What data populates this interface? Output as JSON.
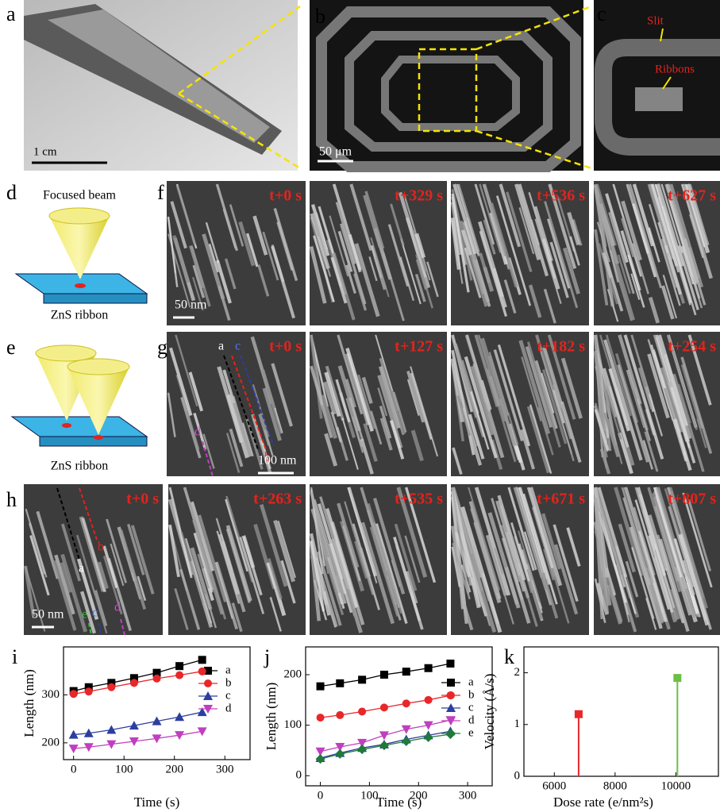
{
  "figure": {
    "panel_labels": [
      "a",
      "b",
      "c",
      "d",
      "e",
      "f",
      "g",
      "h",
      "i",
      "j",
      "k"
    ],
    "a": {
      "scale_bar": "1 cm"
    },
    "b": {
      "scale_bar": "50 μm"
    },
    "c": {
      "annotations": [
        "Slit",
        "Ribbons"
      ]
    },
    "d": {
      "beam": "Focused beam",
      "sample": "ZnS ribbon"
    },
    "e": {
      "sample": "ZnS ribbon"
    },
    "f": {
      "times": [
        "t+0 s",
        "t+329 s",
        "t+536 s",
        "t+627 s"
      ],
      "scale_bar": "50 nm"
    },
    "g": {
      "times": [
        "t+0 s",
        "t+127 s",
        "t+182 s",
        "t+254 s"
      ],
      "markers": [
        "a",
        "c",
        "d",
        "b"
      ],
      "scale_bar": "100 nm"
    },
    "h": {
      "times": [
        "t+0 s",
        "t+263 s",
        "t+535 s",
        "t+671 s",
        "t+807 s"
      ],
      "markers": [
        "b",
        "a",
        "e",
        "c",
        "d"
      ],
      "scale_bar": "50 nm"
    }
  },
  "chart_data": [
    {
      "type": "line",
      "x_label": "Time (s)",
      "y_label": "Length (nm)",
      "x": [
        0,
        30,
        75,
        120,
        165,
        210,
        255
      ],
      "xlim": [
        -20,
        350
      ],
      "xticks": [
        0,
        100,
        200,
        300
      ],
      "ylim": [
        165,
        400
      ],
      "yticks": [
        200,
        300
      ],
      "series": [
        {
          "name": "a",
          "color": "#000000",
          "marker": "square",
          "values": [
            308,
            316,
            325,
            335,
            346,
            360,
            373
          ]
        },
        {
          "name": "b",
          "color": "#e8272a",
          "marker": "circle",
          "values": [
            302,
            307,
            316,
            325,
            334,
            341,
            349
          ]
        },
        {
          "name": "c",
          "color": "#2c3e9e",
          "marker": "triangle",
          "values": [
            217,
            220,
            227,
            236,
            245,
            254,
            264
          ]
        },
        {
          "name": "d",
          "color": "#c03fbf",
          "marker": "triangle-down",
          "values": [
            188,
            191,
            197,
            203,
            209,
            216,
            224
          ]
        }
      ]
    },
    {
      "type": "line",
      "x_label": "Time (s)",
      "y_label": "Length (nm)",
      "x": [
        0,
        40,
        85,
        130,
        175,
        220,
        265
      ],
      "xlim": [
        -30,
        350
      ],
      "xticks": [
        0,
        100,
        200,
        300
      ],
      "ylim": [
        -20,
        255
      ],
      "yticks": [
        0,
        100,
        200
      ],
      "series": [
        {
          "name": "a",
          "color": "#000000",
          "marker": "square",
          "values": [
            177,
            183,
            190,
            200,
            206,
            213,
            222
          ]
        },
        {
          "name": "b",
          "color": "#e8272a",
          "marker": "circle",
          "values": [
            115,
            120,
            127,
            135,
            143,
            150,
            159
          ]
        },
        {
          "name": "c",
          "color": "#2c3e9e",
          "marker": "triangle",
          "values": [
            35,
            45,
            55,
            62,
            72,
            80,
            88
          ]
        },
        {
          "name": "d",
          "color": "#c03fbf",
          "marker": "triangle-down",
          "values": [
            48,
            57,
            65,
            80,
            92,
            100,
            110
          ]
        },
        {
          "name": "e",
          "color": "#1f7a3a",
          "marker": "diamond",
          "values": [
            33,
            43,
            52,
            60,
            68,
            76,
            82
          ]
        }
      ]
    },
    {
      "type": "stem",
      "x_label": "Dose rate (e/nm²s)",
      "y_label": "Velocity (Å/s)",
      "x": [
        6800,
        10050
      ],
      "values": [
        1.2,
        1.9
      ],
      "colors": [
        "#e8272a",
        "#6abf45"
      ],
      "xlim": [
        5000,
        11400
      ],
      "xticks": [
        6000,
        8000,
        10000
      ],
      "ylim": [
        0,
        2.5
      ],
      "yticks": [
        0,
        1,
        2
      ]
    }
  ]
}
